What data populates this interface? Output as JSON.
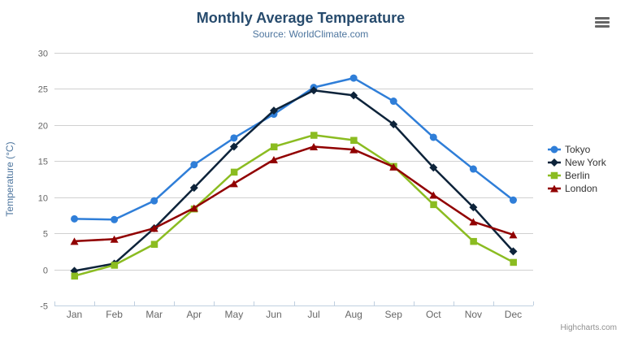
{
  "chart": {
    "title": "Monthly Average Temperature",
    "subtitle": "Source: WorldClimate.com"
  },
  "credits": {
    "label": "Highcharts.com"
  },
  "export_menu": {
    "icon": "hamburger-icon"
  },
  "colors": {
    "title": "#274b6d",
    "subtitle": "#4d759e",
    "axis_label": "#666666",
    "axis_title": "#4d759e",
    "grid_line": "#d0d0d0",
    "axis_line": "#c0d0e0",
    "legend_text": "#333333",
    "credits_text": "#909090",
    "menu_icon": "#666666"
  },
  "chart_data": {
    "type": "line",
    "title": "Monthly Average Temperature",
    "subtitle": "Source: WorldClimate.com",
    "xlabel": "",
    "ylabel": "Temperature (°C)",
    "categories": [
      "Jan",
      "Feb",
      "Mar",
      "Apr",
      "May",
      "Jun",
      "Jul",
      "Aug",
      "Sep",
      "Oct",
      "Nov",
      "Dec"
    ],
    "ylim": [
      -5,
      30
    ],
    "ytick_interval": 5,
    "ytick_labels": [
      "-5",
      "0",
      "5",
      "10",
      "15",
      "20",
      "25",
      "30"
    ],
    "grid": true,
    "legend_position": "right",
    "series": [
      {
        "name": "Tokyo",
        "color": "#2f7ed8",
        "marker": "circle",
        "values": [
          7.0,
          6.9,
          9.5,
          14.5,
          18.2,
          21.5,
          25.2,
          26.5,
          23.3,
          18.3,
          13.9,
          9.6
        ]
      },
      {
        "name": "New York",
        "color": "#0d233a",
        "marker": "diamond",
        "values": [
          -0.2,
          0.8,
          5.7,
          11.3,
          17.0,
          22.0,
          24.8,
          24.1,
          20.1,
          14.1,
          8.6,
          2.5
        ]
      },
      {
        "name": "Berlin",
        "color": "#8bbc21",
        "marker": "square",
        "values": [
          -0.9,
          0.6,
          3.5,
          8.4,
          13.5,
          17.0,
          18.6,
          17.9,
          14.3,
          9.0,
          3.9,
          1.0
        ]
      },
      {
        "name": "London",
        "color": "#910000",
        "marker": "triangle",
        "values": [
          3.9,
          4.2,
          5.7,
          8.5,
          11.9,
          15.2,
          17.0,
          16.6,
          14.2,
          10.3,
          6.6,
          4.8
        ]
      }
    ]
  }
}
